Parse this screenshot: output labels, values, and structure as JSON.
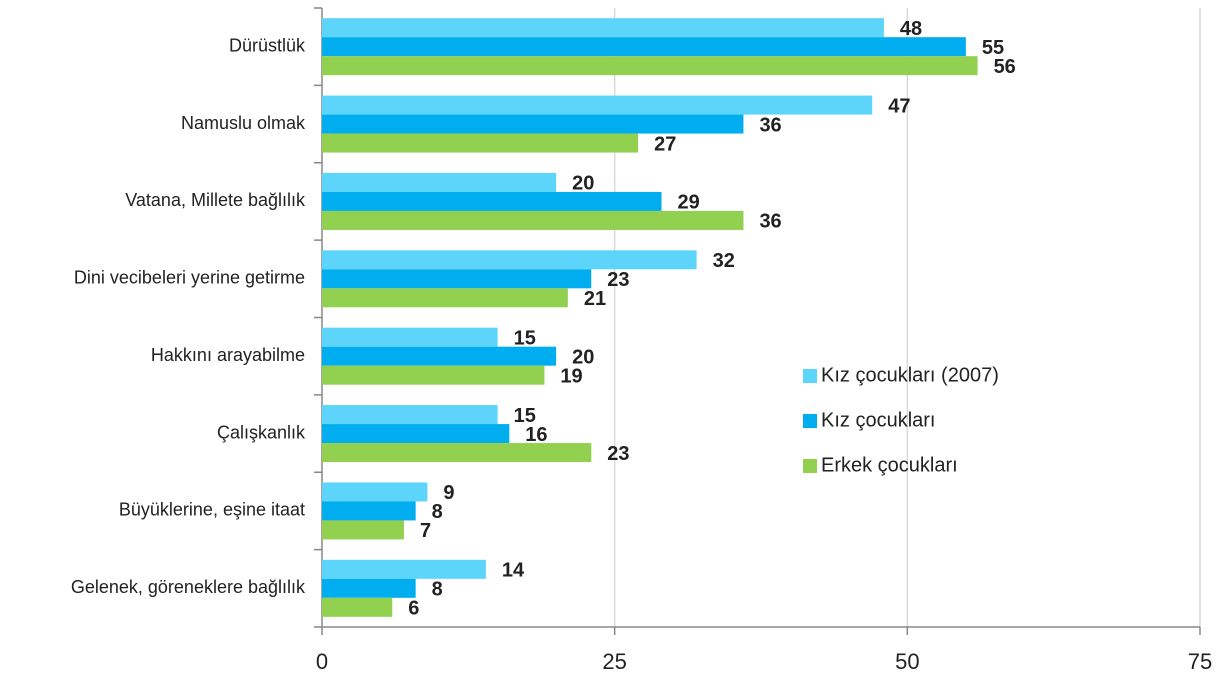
{
  "chart_data": {
    "type": "bar",
    "orientation": "horizontal",
    "categories": [
      "Dürüstlük",
      "Namuslu olmak",
      "Vatana, Millete bağlılık",
      "Dini vecibeleri yerine getirme",
      "Hakkını arayabilme",
      "Çalışkanlık",
      "Büyüklerine, eşine itaat",
      "Gelenek, göreneklere bağlılık"
    ],
    "series": [
      {
        "name": "Kız çocukları (2007)",
        "color": "#5dd5fb",
        "values": [
          48,
          47,
          20,
          32,
          15,
          15,
          9,
          14
        ]
      },
      {
        "name": "Kız çocukları",
        "color": "#00aeef",
        "values": [
          55,
          36,
          29,
          23,
          20,
          16,
          8,
          8
        ]
      },
      {
        "name": "Erkek çocukları",
        "color": "#92d050",
        "values": [
          56,
          27,
          36,
          21,
          19,
          23,
          7,
          6
        ]
      }
    ],
    "xlim": [
      0,
      75
    ],
    "xticks": [
      0,
      25,
      50,
      75
    ],
    "grid": true
  }
}
